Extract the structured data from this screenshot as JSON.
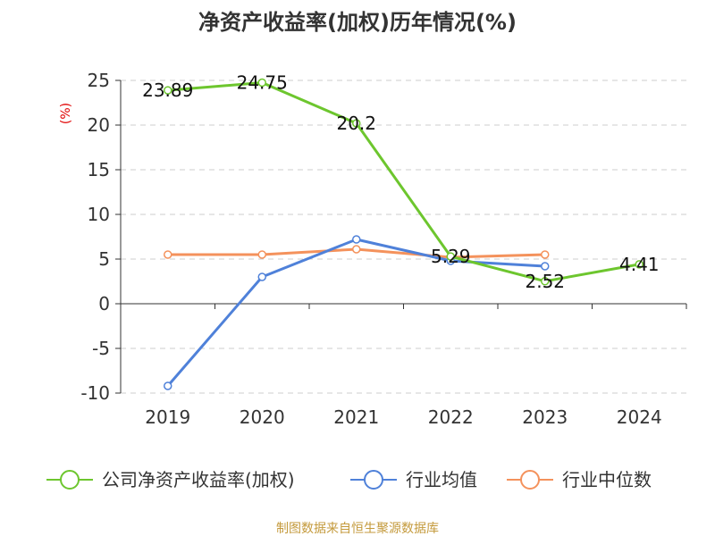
{
  "chart_data": {
    "type": "line",
    "title": "净资产收益率(加权)历年情况(%)",
    "ylabel": "(%)",
    "xlabel": "",
    "categories": [
      "2019",
      "2020",
      "2021",
      "2022",
      "2023",
      "2024"
    ],
    "ylim": [
      -10,
      25
    ],
    "yticks": [
      25,
      20,
      15,
      10,
      5,
      0,
      -5,
      -10
    ],
    "grid": true,
    "legend_position": "bottom",
    "series": [
      {
        "name": "公司净资产收益率(加权)",
        "color": "#6dc62e",
        "values": [
          23.89,
          24.75,
          20.2,
          5.29,
          2.52,
          4.41
        ],
        "labels": [
          "23.89",
          "24.75",
          "20.2",
          "5.29",
          "2.52",
          "4.41"
        ]
      },
      {
        "name": "行业均值",
        "color": "#4f81d9",
        "values": [
          -9.2,
          3.0,
          7.2,
          4.8,
          4.2,
          null
        ]
      },
      {
        "name": "行业中位数",
        "color": "#f4925c",
        "values": [
          5.5,
          5.5,
          6.1,
          5.2,
          5.5,
          null
        ]
      }
    ]
  },
  "source": "制图数据来自恒生聚源数据库"
}
